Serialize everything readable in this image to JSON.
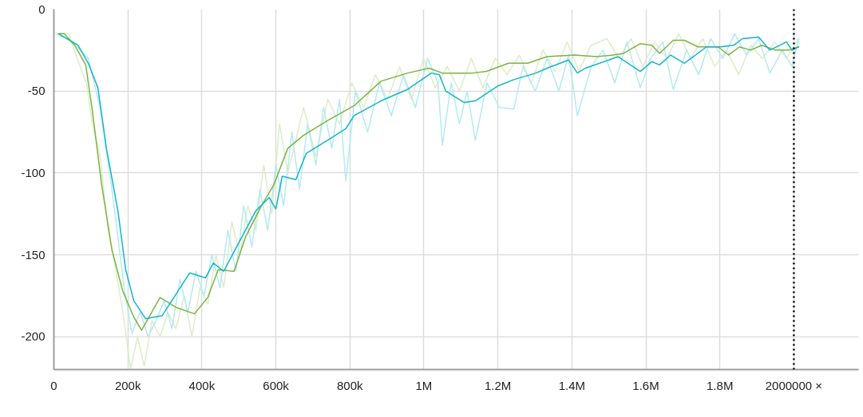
{
  "chart_data": {
    "type": "line",
    "xlim": [
      0,
      2175000
    ],
    "ylim": [
      -220,
      0
    ],
    "xticks": [
      {
        "value": 0,
        "label": "0"
      },
      {
        "value": 200000,
        "label": "200k"
      },
      {
        "value": 400000,
        "label": "400k"
      },
      {
        "value": 600000,
        "label": "600k"
      },
      {
        "value": 800000,
        "label": "800k"
      },
      {
        "value": 1000000,
        "label": "1M"
      },
      {
        "value": 1200000,
        "label": "1.2M"
      },
      {
        "value": 1400000,
        "label": "1.4M"
      },
      {
        "value": 1600000,
        "label": "1.6M"
      },
      {
        "value": 1800000,
        "label": "1.8M"
      },
      {
        "value": 2000000,
        "label": null
      }
    ],
    "yticks": [
      0,
      -50,
      -100,
      -150,
      -200
    ],
    "grid": true,
    "marker": "none",
    "line_style": "solid",
    "ref_lines": [
      {
        "axis": "x",
        "value": 2000000,
        "label": "2000000 ×",
        "color": "#000000",
        "line_style": "dotted"
      }
    ],
    "series": [
      {
        "color": "#dcedc8",
        "x": [
          6000,
          39000,
          71000,
          88000,
          104000,
          125000,
          147000,
          168000,
          190000,
          207000,
          226000,
          244000,
          265000,
          287000,
          308000,
          330000,
          352000,
          373000,
          395000,
          416000,
          438000,
          459000,
          481000,
          503000,
          524000,
          546000,
          567000,
          589000,
          610000,
          632000,
          654000,
          675000,
          708000,
          740000,
          772000,
          805000,
          837000,
          869000,
          902000,
          934000,
          966000,
          999000,
          1031000,
          1063000,
          1096000,
          1128000,
          1160000,
          1193000,
          1225000,
          1258000,
          1290000,
          1322000,
          1355000,
          1387000,
          1419000,
          1452000,
          1495000,
          1527000,
          1560000,
          1592000,
          1624000,
          1657000,
          1689000,
          1721000,
          1754000,
          1786000,
          1818000,
          1851000,
          1883000,
          1915000,
          1948000,
          1980000,
          2013000
        ],
        "values": [
          -15,
          -15,
          -35,
          -45,
          -70,
          -90,
          -135,
          -160,
          -190,
          -220,
          -200,
          -218,
          -190,
          -200,
          -185,
          -195,
          -175,
          -200,
          -170,
          -180,
          -150,
          -170,
          -130,
          -150,
          -120,
          -135,
          -95,
          -125,
          -70,
          -100,
          -80,
          -60,
          -90,
          -55,
          -70,
          -45,
          -60,
          -40,
          -55,
          -35,
          -55,
          -30,
          -48,
          -35,
          -50,
          -30,
          -48,
          -30,
          -40,
          -28,
          -45,
          -25,
          -38,
          -20,
          -38,
          -22,
          -18,
          -30,
          -18,
          -35,
          -20,
          -30,
          -15,
          -30,
          -18,
          -35,
          -25,
          -40,
          -22,
          -30,
          -20,
          -30,
          -18
        ]
      },
      {
        "color": "#b2ebf2",
        "x": [
          6000,
          50000,
          93000,
          125000,
          157000,
          190000,
          211000,
          233000,
          255000,
          276000,
          298000,
          319000,
          341000,
          362000,
          384000,
          406000,
          427000,
          449000,
          470000,
          492000,
          513000,
          535000,
          557000,
          578000,
          600000,
          621000,
          643000,
          664000,
          686000,
          708000,
          729000,
          751000,
          772000,
          789000,
          815000,
          848000,
          880000,
          912000,
          945000,
          977000,
          1010000,
          1038000,
          1050000,
          1074000,
          1096000,
          1117000,
          1139000,
          1171000,
          1204000,
          1243000,
          1268000,
          1301000,
          1333000,
          1365000,
          1391000,
          1415000,
          1452000,
          1484000,
          1516000,
          1549000,
          1585000,
          1613000,
          1646000,
          1674000,
          1710000,
          1743000,
          1775000,
          1808000,
          1840000,
          1872000,
          1905000,
          1935000,
          1969000,
          1995000,
          2013000
        ],
        "values": [
          -15,
          -20,
          -30,
          -60,
          -110,
          -170,
          -198,
          -185,
          -200,
          -190,
          -178,
          -195,
          -165,
          -185,
          -160,
          -175,
          -150,
          -170,
          -135,
          -160,
          -120,
          -145,
          -110,
          -135,
          -95,
          -120,
          -75,
          -110,
          -70,
          -95,
          -60,
          -85,
          -55,
          -105,
          -50,
          -75,
          -45,
          -65,
          -40,
          -60,
          -30,
          -45,
          -83,
          -45,
          -70,
          -50,
          -80,
          -45,
          -60,
          -61,
          -35,
          -50,
          -30,
          -50,
          -28,
          -65,
          -35,
          -25,
          -45,
          -20,
          -48,
          -30,
          -20,
          -49,
          -25,
          -40,
          -18,
          -30,
          -15,
          -28,
          -18,
          -39,
          -25,
          -35,
          -18
        ]
      },
      {
        "color": "#7cb342",
        "x": [
          13000,
          28000,
          56000,
          86000,
          104000,
          129000,
          157000,
          186000,
          216000,
          237000,
          287000,
          330000,
          380000,
          416000,
          444000,
          487000,
          518000,
          561000,
          595000,
          632000,
          675000,
          740000,
          811000,
          884000,
          956000,
          1014000,
          1050000,
          1063000,
          1132000,
          1169000,
          1229000,
          1281000,
          1333000,
          1406000,
          1467000,
          1512000,
          1540000,
          1585000,
          1616000,
          1637000,
          1674000,
          1704000,
          1741000,
          1795000,
          1823000,
          1853000,
          1883000,
          1913000,
          1950000,
          1987000,
          2013000
        ],
        "values": [
          -15,
          -15,
          -22,
          -34,
          -62,
          -107,
          -147,
          -172,
          -188,
          -196,
          -176,
          -182,
          -186,
          -176,
          -159,
          -160,
          -139,
          -120,
          -107,
          -85,
          -77,
          -68,
          -59,
          -44,
          -39,
          -36,
          -39,
          -39,
          -39,
          -38,
          -33,
          -33,
          -29,
          -28,
          -29,
          -28,
          -27,
          -21,
          -22,
          -27,
          -19,
          -19,
          -23,
          -23,
          -28,
          -23,
          -25,
          -22,
          -25,
          -25,
          -23
        ]
      },
      {
        "color": "#12b5cb",
        "x": [
          13000,
          43000,
          65000,
          93000,
          119000,
          142000,
          173000,
          194000,
          216000,
          248000,
          293000,
          367000,
          410000,
          431000,
          459000,
          487000,
          546000,
          582000,
          600000,
          617000,
          654000,
          682000,
          740000,
          789000,
          811000,
          884000,
          956000,
          1020000,
          1042000,
          1059000,
          1109000,
          1139000,
          1199000,
          1243000,
          1303000,
          1333000,
          1391000,
          1415000,
          1437000,
          1525000,
          1585000,
          1616000,
          1637000,
          1667000,
          1704000,
          1764000,
          1801000,
          1838000,
          1861000,
          1905000,
          1935000,
          1980000,
          1995000,
          2013000
        ],
        "values": [
          -15,
          -19,
          -22,
          -33,
          -48,
          -85,
          -123,
          -159,
          -178,
          -189,
          -187,
          -161,
          -164,
          -155,
          -160,
          -148,
          -123,
          -115,
          -122,
          -102,
          -104,
          -88,
          -80,
          -73,
          -65,
          -56,
          -49,
          -39,
          -40,
          -50,
          -57,
          -56,
          -47,
          -43,
          -39,
          -36,
          -31,
          -39,
          -36,
          -29,
          -38,
          -32,
          -34,
          -28,
          -33,
          -23,
          -23,
          -22,
          -18,
          -17,
          -25,
          -20,
          -25,
          -23
        ]
      }
    ]
  }
}
